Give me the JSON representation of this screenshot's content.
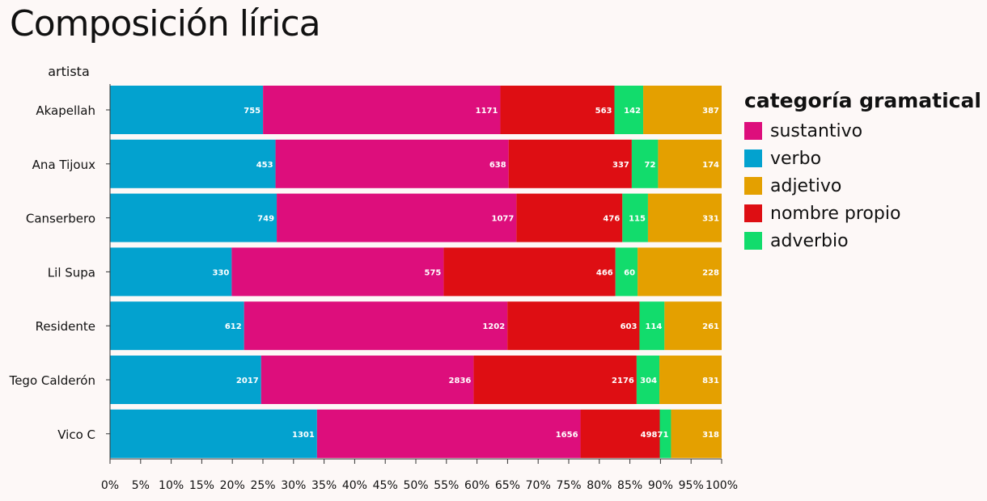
{
  "chart_data": {
    "type": "bar",
    "orientation": "horizontal",
    "stacked": "percent",
    "title": "Composición lírica",
    "ylabel": "artista",
    "xlim": [
      0,
      100
    ],
    "xticks": [
      "0%",
      "5%",
      "10%",
      "15%",
      "20%",
      "25%",
      "30%",
      "35%",
      "40%",
      "45%",
      "50%",
      "55%",
      "60%",
      "65%",
      "70%",
      "75%",
      "80%",
      "85%",
      "90%",
      "95%",
      "100%"
    ],
    "categories": [
      "Akapellah",
      "Ana Tijoux",
      "Canserbero",
      "Lil Supa",
      "Residente",
      "Tego Calderón",
      "Vico C"
    ],
    "stack_order": [
      "verbo",
      "sustantivo",
      "nombre propio",
      "adverbio",
      "adjetivo"
    ],
    "series": [
      {
        "name": "sustantivo",
        "color": "#dd0e7c",
        "values": [
          1171,
          638,
          1077,
          575,
          1202,
          2836,
          1656
        ]
      },
      {
        "name": "verbo",
        "color": "#03a2cf",
        "values": [
          755,
          453,
          749,
          330,
          612,
          2017,
          1301
        ]
      },
      {
        "name": "adjetivo",
        "color": "#e4a000",
        "values": [
          387,
          174,
          331,
          228,
          261,
          831,
          318
        ]
      },
      {
        "name": "nombre propio",
        "color": "#de0e13",
        "values": [
          563,
          337,
          476,
          466,
          603,
          2176,
          498
        ]
      },
      {
        "name": "adverbio",
        "color": "#12dc6c",
        "values": [
          142,
          72,
          115,
          60,
          114,
          304,
          71
        ]
      }
    ],
    "legend": {
      "title": "categoría gramatical",
      "placement": "right"
    },
    "grid": false
  }
}
